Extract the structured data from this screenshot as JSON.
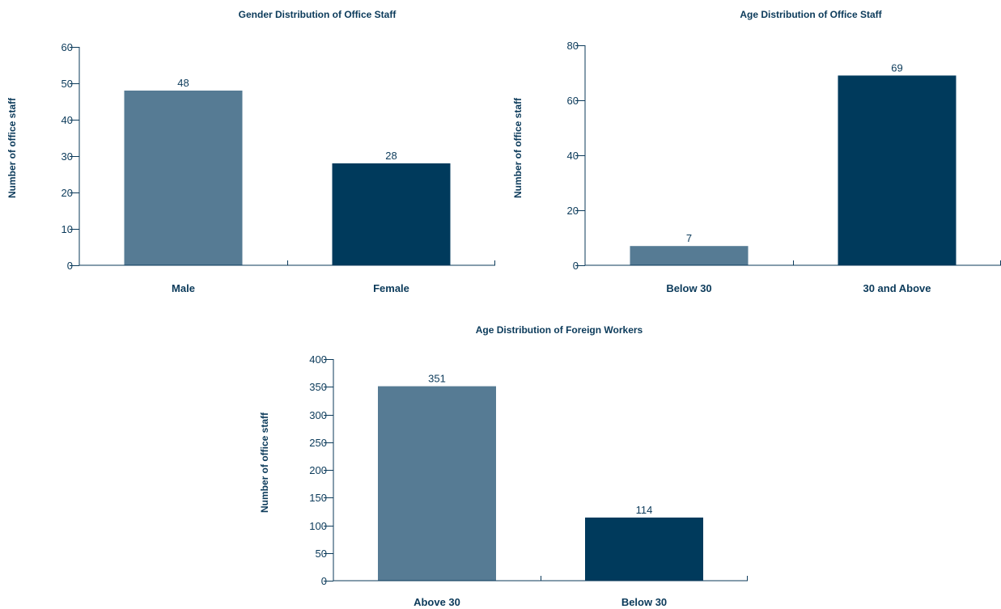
{
  "chart_data": [
    {
      "type": "bar",
      "title": "Gender Distribution of Office Staff",
      "xlabel": "",
      "ylabel": "Number of office staff",
      "categories": [
        "Male",
        "Female"
      ],
      "values": [
        48,
        28
      ],
      "data_labels": [
        "48",
        "28"
      ],
      "ylim": [
        0,
        60
      ],
      "yticks": [
        0,
        10,
        20,
        30,
        40,
        50,
        60
      ],
      "ytick_labels": [
        "0",
        "10",
        "20",
        "30",
        "40",
        "50",
        "60"
      ],
      "bar_colors": [
        "#567b94",
        "#003a5c"
      ],
      "grid": false
    },
    {
      "type": "bar",
      "title": "Age Distribution of Office Staff",
      "xlabel": "",
      "ylabel": "Number of office staff",
      "categories": [
        "Below 30",
        "30 and Above"
      ],
      "values": [
        7,
        69
      ],
      "data_labels": [
        "7",
        "69"
      ],
      "ylim": [
        0,
        80
      ],
      "yticks": [
        0,
        20,
        40,
        60,
        80
      ],
      "ytick_labels": [
        "0",
        "20",
        "40",
        "60",
        "80"
      ],
      "bar_colors": [
        "#567b94",
        "#003a5c"
      ],
      "grid": false
    },
    {
      "type": "bar",
      "title": "Age Distribution of Foreign Workers",
      "xlabel": "",
      "ylabel": "Number of office staff",
      "categories": [
        "Above 30",
        "Below 30"
      ],
      "values": [
        351,
        114
      ],
      "data_labels": [
        "351",
        "114"
      ],
      "ylim": [
        0,
        400
      ],
      "yticks": [
        0,
        50,
        100,
        150,
        200,
        250,
        300,
        350,
        400
      ],
      "ytick_labels": [
        "0",
        "50",
        "100",
        "150",
        "200",
        "250",
        "300",
        "350",
        "400"
      ],
      "bar_colors": [
        "#567b94",
        "#003a5c"
      ],
      "grid": false
    }
  ]
}
